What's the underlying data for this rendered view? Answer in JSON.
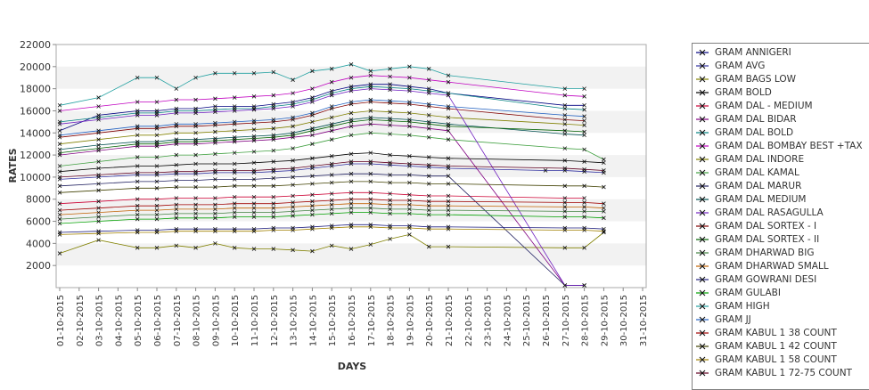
{
  "chart_data": {
    "type": "line",
    "title": "",
    "xlabel": "DAYS",
    "ylabel": "RATES",
    "ylim": [
      0,
      22000
    ],
    "yticks": [
      2000,
      4000,
      6000,
      8000,
      10000,
      12000,
      14000,
      16000,
      18000,
      20000,
      22000
    ],
    "grid": "alternating horizontal bands",
    "legend_position": "right",
    "categories": [
      "01-10-2015",
      "02-10-2015",
      "03-10-2015",
      "04-10-2015",
      "05-10-2015",
      "06-10-2015",
      "07-10-2015",
      "08-10-2015",
      "09-10-2015",
      "10-10-2015",
      "11-10-2015",
      "12-10-2015",
      "13-10-2015",
      "14-10-2015",
      "15-10-2015",
      "16-10-2015",
      "17-10-2015",
      "18-10-2015",
      "19-10-2015",
      "20-10-2015",
      "21-10-2015",
      "22-10-2015",
      "23-10-2015",
      "24-10-2015",
      "25-10-2015",
      "26-10-2015",
      "27-10-2015",
      "28-10-2015",
      "29-10-2015",
      "30-10-2015",
      "31-10-2015"
    ],
    "series": [
      {
        "name": "GRAM ANNIGERI",
        "color": "#000080",
        "values": [
          14200,
          null,
          15600,
          null,
          16000,
          16000,
          16200,
          16200,
          16400,
          16400,
          16400,
          16600,
          16800,
          17200,
          17800,
          18200,
          18400,
          18400,
          18200,
          18000,
          17600,
          null,
          null,
          null,
          null,
          null,
          16500,
          16500,
          null,
          null,
          null
        ]
      },
      {
        "name": "GRAM AVG",
        "color": "#3030a0",
        "values": [
          9800,
          null,
          10000,
          null,
          10200,
          10200,
          10300,
          10300,
          10400,
          10400,
          10400,
          10500,
          10600,
          10800,
          11000,
          11200,
          11200,
          11100,
          11000,
          10900,
          10800,
          null,
          null,
          null,
          null,
          10600,
          10600,
          10500,
          10400,
          null,
          null
        ]
      },
      {
        "name": "GRAM BAGS LOW",
        "color": "#808000",
        "values": [
          3100,
          null,
          4300,
          null,
          3600,
          3600,
          3800,
          3600,
          4000,
          3600,
          3500,
          3500,
          3400,
          3300,
          3800,
          3500,
          3900,
          4400,
          4800,
          3700,
          3700,
          null,
          null,
          null,
          null,
          null,
          3600,
          3600,
          5000,
          null,
          null
        ]
      },
      {
        "name": "GRAM BOLD",
        "color": "#000000",
        "values": [
          10500,
          null,
          10800,
          null,
          11000,
          11000,
          11100,
          11200,
          11200,
          11200,
          11300,
          11400,
          11500,
          11700,
          11900,
          12100,
          12200,
          12000,
          11900,
          11800,
          11700,
          null,
          null,
          null,
          null,
          null,
          11500,
          11400,
          11300,
          null,
          null
        ]
      },
      {
        "name": "GRAM DAL - MEDIUM",
        "color": "#cc0033",
        "values": [
          7600,
          null,
          7800,
          null,
          8000,
          8000,
          8100,
          8100,
          8100,
          8200,
          8200,
          8200,
          8300,
          8400,
          8500,
          8600,
          8600,
          8500,
          8400,
          8300,
          8300,
          null,
          null,
          null,
          null,
          null,
          8100,
          8100,
          null,
          null,
          null
        ]
      },
      {
        "name": "GRAM DAL BIDAR",
        "color": "#800080",
        "values": [
          12000,
          null,
          12400,
          null,
          12800,
          12800,
          13000,
          13000,
          13100,
          13200,
          13300,
          13400,
          13600,
          13800,
          14200,
          14600,
          14800,
          14700,
          14600,
          14400,
          14200,
          null,
          null,
          null,
          null,
          null,
          200,
          200,
          null,
          null,
          null
        ]
      },
      {
        "name": "GRAM DAL BOLD",
        "color": "#008080",
        "values": [
          15000,
          null,
          15400,
          null,
          15800,
          15800,
          16000,
          16000,
          16100,
          16200,
          16200,
          16400,
          16600,
          17000,
          17600,
          18000,
          18200,
          18100,
          18000,
          17800,
          17600,
          null,
          null,
          null,
          null,
          null,
          16200,
          16100,
          null,
          null,
          null
        ]
      },
      {
        "name": "GRAM DAL BOMBAY BEST +TAX",
        "color": "#c000c0",
        "values": [
          16000,
          null,
          16400,
          null,
          16800,
          16800,
          17000,
          17000,
          17100,
          17200,
          17300,
          17400,
          17600,
          18000,
          18600,
          19000,
          19200,
          19100,
          19000,
          18800,
          18600,
          null,
          null,
          null,
          null,
          null,
          17400,
          17300,
          null,
          null,
          null
        ]
      },
      {
        "name": "GRAM DAL INDORE",
        "color": "#808000",
        "values": [
          13000,
          null,
          13400,
          null,
          13800,
          13800,
          14000,
          14000,
          14100,
          14200,
          14300,
          14400,
          14600,
          15000,
          15400,
          15800,
          16000,
          15900,
          15800,
          15600,
          15400,
          null,
          null,
          null,
          null,
          null,
          14800,
          14700,
          null,
          null,
          null
        ]
      },
      {
        "name": "GRAM DAL KAMAL",
        "color": "#40a040",
        "values": [
          11000,
          null,
          11400,
          null,
          11800,
          11800,
          12000,
          12000,
          12100,
          12200,
          12300,
          12400,
          12600,
          13000,
          13400,
          13800,
          14000,
          13900,
          13800,
          13600,
          13400,
          null,
          null,
          null,
          null,
          null,
          12600,
          12500,
          11600,
          null,
          null
        ]
      },
      {
        "name": "GRAM DAL MARUR",
        "color": "#202060",
        "values": [
          9200,
          null,
          9400,
          null,
          9600,
          9600,
          9700,
          9700,
          9800,
          9800,
          9800,
          9900,
          10000,
          10100,
          10200,
          10300,
          10300,
          10200,
          10200,
          10100,
          10100,
          null,
          null,
          null,
          null,
          null,
          200,
          200,
          null,
          null,
          null
        ]
      },
      {
        "name": "GRAM DAL MEDIUM",
        "color": "#005050",
        "values": [
          12500,
          null,
          12900,
          null,
          13200,
          13200,
          13400,
          13400,
          13500,
          13600,
          13700,
          13800,
          14000,
          14400,
          14800,
          15200,
          15400,
          15300,
          15200,
          15000,
          14800,
          null,
          null,
          null,
          null,
          null,
          13900,
          13800,
          null,
          null,
          null
        ]
      },
      {
        "name": "GRAM DAL RASAGULLA",
        "color": "#7020c0",
        "values": [
          14800,
          null,
          15200,
          null,
          15600,
          15600,
          15800,
          15800,
          15900,
          16000,
          16100,
          16200,
          16400,
          16800,
          17400,
          17800,
          18000,
          17900,
          17800,
          17600,
          17400,
          null,
          null,
          null,
          null,
          null,
          200,
          200,
          null,
          null,
          null
        ]
      },
      {
        "name": "GRAM DAL SORTEX - I",
        "color": "#800000",
        "values": [
          13600,
          null,
          14000,
          null,
          14400,
          14400,
          14600,
          14600,
          14700,
          14800,
          14900,
          15000,
          15200,
          15600,
          16200,
          16600,
          16800,
          16700,
          16600,
          16400,
          16200,
          null,
          null,
          null,
          null,
          null,
          15200,
          15100,
          null,
          null,
          null
        ]
      },
      {
        "name": "GRAM DAL SORTEX - II",
        "color": "#006000",
        "values": [
          12200,
          null,
          12600,
          null,
          13000,
          13000,
          13200,
          13200,
          13300,
          13400,
          13500,
          13600,
          13800,
          14200,
          14600,
          15000,
          15200,
          15100,
          15000,
          14800,
          14600,
          null,
          null,
          null,
          null,
          null,
          14200,
          14100,
          null,
          null,
          null
        ]
      },
      {
        "name": "GRAM DHARWAD BIG",
        "color": "#408040",
        "values": [
          6200,
          null,
          6400,
          null,
          6600,
          6600,
          6700,
          6700,
          6700,
          6800,
          6800,
          6800,
          6900,
          7000,
          7100,
          7200,
          7200,
          7100,
          7100,
          7000,
          7000,
          null,
          null,
          null,
          null,
          null,
          6900,
          6900,
          6900,
          null,
          null
        ]
      },
      {
        "name": "GRAM DHARWAD SMALL",
        "color": "#c06000",
        "values": [
          6600,
          null,
          6800,
          null,
          7000,
          7000,
          7100,
          7100,
          7100,
          7200,
          7200,
          7200,
          7300,
          7400,
          7500,
          7600,
          7600,
          7500,
          7500,
          7400,
          7400,
          null,
          null,
          null,
          null,
          null,
          7300,
          7300,
          7200,
          null,
          null
        ]
      },
      {
        "name": "GRAM GOWRANI DESI",
        "color": "#202080",
        "values": [
          5000,
          null,
          5100,
          null,
          5200,
          5200,
          5300,
          5300,
          5300,
          5300,
          5300,
          5400,
          5400,
          5500,
          5600,
          5700,
          5700,
          5600,
          5600,
          5500,
          5500,
          null,
          null,
          null,
          null,
          null,
          5400,
          5400,
          5300,
          null,
          null
        ]
      },
      {
        "name": "GRAM GULABI",
        "color": "#00a000",
        "values": [
          5800,
          null,
          6000,
          null,
          6200,
          6200,
          6300,
          6300,
          6300,
          6400,
          6400,
          6400,
          6500,
          6600,
          6700,
          6800,
          6800,
          6700,
          6700,
          6600,
          6600,
          null,
          null,
          null,
          null,
          null,
          6400,
          6400,
          6300,
          null,
          null
        ]
      },
      {
        "name": "GRAM HIGH",
        "color": "#20a0a0",
        "values": [
          16500,
          null,
          17200,
          null,
          19000,
          19000,
          18000,
          19000,
          19400,
          19400,
          19400,
          19500,
          18800,
          19600,
          19800,
          20200,
          19600,
          19800,
          20000,
          19800,
          19200,
          null,
          null,
          null,
          null,
          null,
          18000,
          18000,
          null,
          null,
          null
        ]
      },
      {
        "name": "GRAM JJ",
        "color": "#2060c0",
        "values": [
          13800,
          null,
          14200,
          null,
          14600,
          14600,
          14800,
          14800,
          14900,
          15000,
          15100,
          15200,
          15400,
          15800,
          16400,
          16800,
          17000,
          16900,
          16800,
          16600,
          16400,
          null,
          null,
          null,
          null,
          null,
          15600,
          15500,
          null,
          null,
          null
        ]
      },
      {
        "name": "GRAM KABUL 1 38 COUNT",
        "color": "#a00000",
        "values": [
          7000,
          null,
          7200,
          null,
          7400,
          7400,
          7500,
          7500,
          7500,
          7600,
          7600,
          7600,
          7700,
          7800,
          7900,
          8000,
          8000,
          7900,
          7900,
          7800,
          7800,
          null,
          null,
          null,
          null,
          null,
          7700,
          7700,
          7600,
          null,
          null
        ]
      },
      {
        "name": "GRAM KABUL 1 42 COUNT",
        "color": "#404000",
        "values": [
          8600,
          null,
          8800,
          null,
          9000,
          9000,
          9100,
          9100,
          9100,
          9200,
          9200,
          9200,
          9300,
          9400,
          9500,
          9600,
          9600,
          9500,
          9500,
          9400,
          9400,
          null,
          null,
          null,
          null,
          null,
          9200,
          9200,
          9100,
          null,
          null
        ]
      },
      {
        "name": "GRAM KABUL 1 58 COUNT",
        "color": "#a08000",
        "values": [
          4800,
          null,
          4900,
          null,
          5000,
          5000,
          5100,
          5100,
          5100,
          5100,
          5100,
          5200,
          5200,
          5300,
          5400,
          5500,
          5500,
          5400,
          5400,
          5300,
          5300,
          null,
          null,
          null,
          null,
          null,
          5200,
          5200,
          5100,
          null,
          null
        ]
      },
      {
        "name": "GRAM KABUL 1 72-75 COUNT",
        "color": "#600020",
        "values": [
          10000,
          null,
          10200,
          null,
          10400,
          10400,
          10500,
          10500,
          10600,
          10600,
          10600,
          10700,
          10800,
          11000,
          11200,
          11400,
          11400,
          11300,
          11200,
          11100,
          11000,
          null,
          null,
          null,
          null,
          null,
          10800,
          10700,
          10600,
          null,
          null
        ]
      }
    ]
  }
}
